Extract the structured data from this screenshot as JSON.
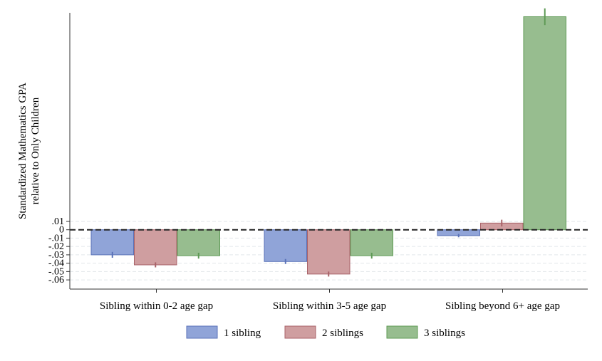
{
  "chart_data": {
    "type": "bar",
    "title": "",
    "xlabel": "",
    "ylabel_line1": "Standardized Mathematics GPA",
    "ylabel_line2": "relative to Only Children",
    "categories": [
      "Sibling within 0-2 age gap",
      "Sibling within 3-5 age gap",
      "Sibling beyond 6+ age gap"
    ],
    "series": [
      {
        "name": "1 sibling",
        "color": "#90a4d8",
        "stroke": "#5a72b8",
        "values": [
          -0.03,
          -0.038,
          -0.007
        ],
        "error": [
          0.0035,
          0.003,
          0.002
        ]
      },
      {
        "name": "2 siblings",
        "color": "#cf9ea0",
        "stroke": "#a86268",
        "values": [
          -0.042,
          -0.053,
          0.008
        ],
        "error": [
          0.003,
          0.003,
          0.004
        ]
      },
      {
        "name": "3 siblings",
        "color": "#97bd8f",
        "stroke": "#5f9a56",
        "values": [
          -0.031,
          -0.031,
          0.255
        ],
        "error": [
          0.0035,
          0.0035,
          0.01
        ]
      }
    ],
    "yticks": [
      0.01,
      0,
      -0.01,
      -0.02,
      -0.03,
      -0.04,
      -0.05,
      -0.06
    ],
    "ytick_labels": [
      ".01",
      "0",
      "-.01",
      "-.02",
      "-.03",
      "-.04",
      "-.05",
      "-.06"
    ],
    "ylim": [
      -0.071,
      0.275
    ],
    "reference_line": 0,
    "legend_position": "bottom",
    "grid": true
  }
}
